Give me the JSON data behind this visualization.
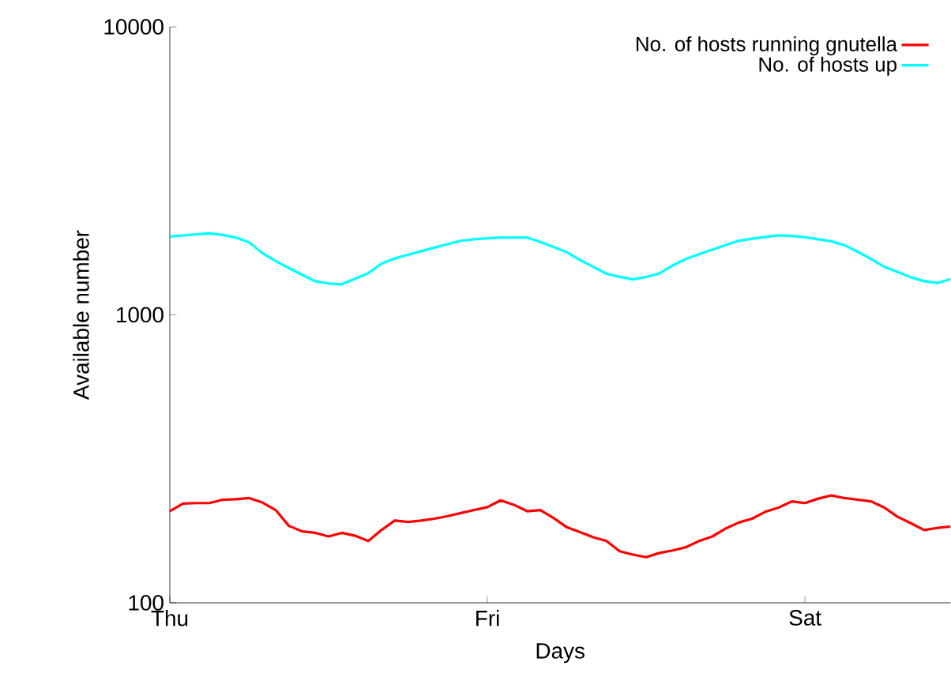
{
  "chart_data": {
    "type": "line",
    "xlabel": "Days",
    "ylabel": "Available number",
    "log": "y",
    "legend": "top right",
    "grid": false,
    "marker": "none",
    "line_style": "solid",
    "categories": [
      "Thu",
      null,
      null,
      null,
      null,
      null,
      null,
      null,
      null,
      null,
      null,
      null,
      null,
      null,
      null,
      null,
      null,
      null,
      null,
      null,
      null,
      null,
      null,
      null,
      "Fri",
      null,
      null,
      null,
      null,
      null,
      null,
      null,
      null,
      null,
      null,
      null,
      null,
      null,
      null,
      null,
      null,
      null,
      null,
      null,
      null,
      null,
      null,
      null,
      "Sat",
      null,
      null,
      null,
      null,
      null,
      null,
      null,
      null,
      null,
      null,
      null
    ],
    "ylim": [
      100,
      10000
    ],
    "yticks": [
      100,
      1000,
      10000
    ],
    "series": [
      {
        "name": "No. of hosts running gnutella",
        "color": "#ff0000",
        "values": [
          208,
          221,
          222,
          222,
          228,
          229,
          231,
          223,
          210,
          185,
          177,
          175,
          170,
          175,
          171,
          164,
          179,
          193,
          191,
          193,
          196,
          200,
          205,
          210,
          215,
          227,
          219,
          208,
          210,
          197,
          183,
          176,
          169,
          164,
          151,
          147,
          144,
          149,
          152,
          156,
          164,
          170,
          181,
          190,
          196,
          207,
          214,
          225,
          222,
          230,
          236,
          231,
          228,
          225,
          214,
          199,
          189,
          179,
          182,
          184
        ]
      },
      {
        "name": "No. of hosts up",
        "color": "#00ffff",
        "values": [
          1871,
          1887,
          1904,
          1919,
          1894,
          1855,
          1785,
          1638,
          1538,
          1454,
          1378,
          1307,
          1285,
          1277,
          1335,
          1396,
          1506,
          1570,
          1617,
          1664,
          1712,
          1760,
          1808,
          1829,
          1845,
          1855,
          1855,
          1855,
          1790,
          1722,
          1651,
          1550,
          1469,
          1389,
          1355,
          1328,
          1354,
          1392,
          1484,
          1564,
          1624,
          1685,
          1746,
          1807,
          1839,
          1865,
          1889,
          1880,
          1861,
          1829,
          1801,
          1745,
          1655,
          1562,
          1468,
          1408,
          1351,
          1309,
          1290,
          1331
        ]
      }
    ]
  }
}
